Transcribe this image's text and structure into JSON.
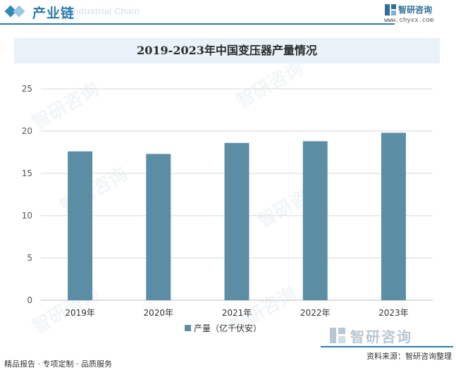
{
  "header": {
    "title": "产业链",
    "subtitle": "Industrial Chain",
    "brand_name": "智研咨询",
    "brand_url": "www.chyxx.com"
  },
  "chart_data": {
    "type": "bar",
    "title": "2019-2023年中国变压器产量情况",
    "categories": [
      "2019年",
      "2020年",
      "2021年",
      "2022年",
      "2023年"
    ],
    "series": [
      {
        "name": "产量（亿千伏安）",
        "values": [
          17.6,
          17.3,
          18.6,
          18.8,
          19.8
        ],
        "color": "#5b8ea4"
      }
    ],
    "yticks": [
      "0",
      "5",
      "10",
      "15",
      "20",
      "25"
    ],
    "ylim": [
      0,
      25
    ],
    "grid": true,
    "legend": "bottom"
  },
  "footer": {
    "left": "精品报告 · 专项定制 · 品质服务",
    "source": "资料来源：智研咨询整理",
    "brand_name": "智研咨询"
  },
  "watermark": "智研咨询",
  "colors": {
    "accent": "#2f7cab",
    "bar": "#5b8ea4",
    "grid": "#d9d9d9"
  }
}
